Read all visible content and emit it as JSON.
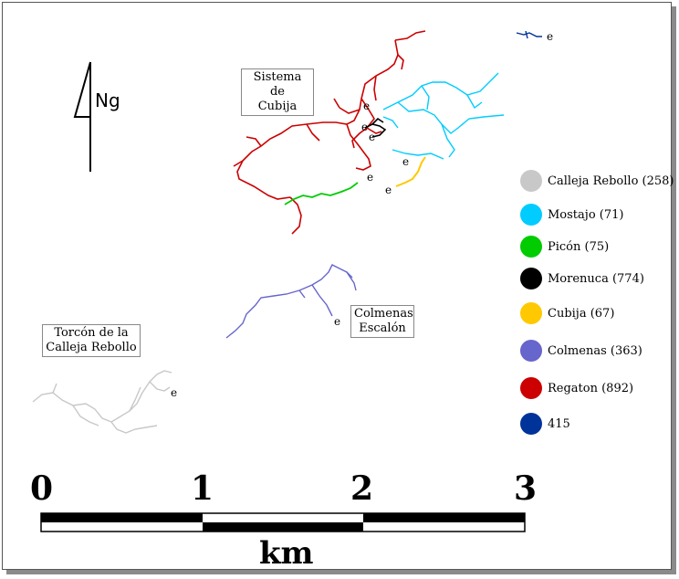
{
  "map": {
    "north_label": "Ng",
    "labels": {
      "sistema": "Sistema de\nCubija",
      "colmenas": "Colmenas\nEscalón",
      "torcon": "Torcón de la\nCalleja Rebollo"
    },
    "entrance_marker": "e"
  },
  "legend": [
    {
      "label": "Calleja Rebollo (258)",
      "color": "#c8c8c8"
    },
    {
      "label": "Mostajo (71)",
      "color": "#00ccff"
    },
    {
      "label": "Picón (75)",
      "color": "#00cc00"
    },
    {
      "label": "Morenuca (774)",
      "color": "#000000"
    },
    {
      "label": "Cubija (67)",
      "color": "#ffc800"
    },
    {
      "label": "Colmenas (363)",
      "color": "#6666cc"
    },
    {
      "label": "Regaton (892)",
      "color": "#cc0000"
    },
    {
      "label": "415",
      "color": "#003399"
    }
  ],
  "scale": {
    "ticks": [
      "0",
      "1",
      "2",
      "3"
    ],
    "units": "km"
  }
}
